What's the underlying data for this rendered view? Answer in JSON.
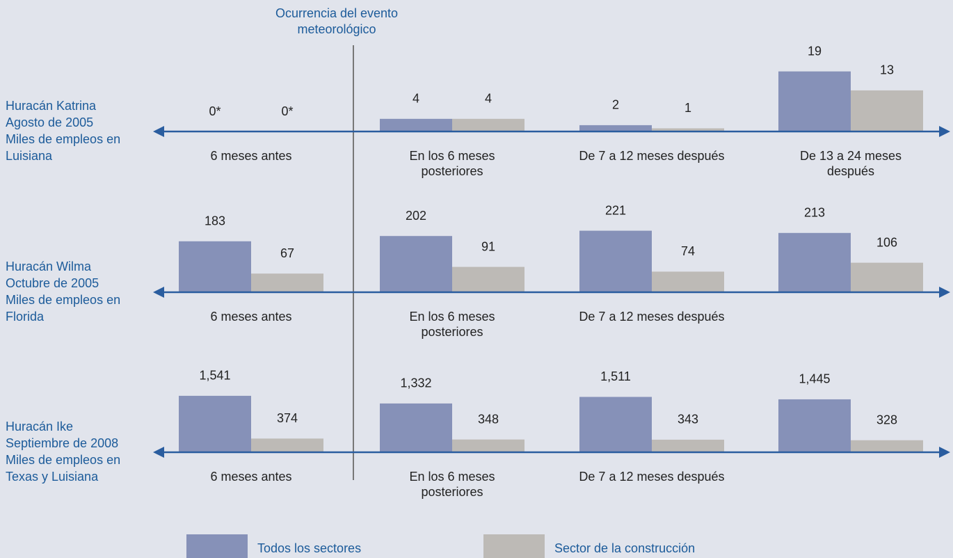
{
  "annotation": [
    "Ocurrencia del evento",
    "meteorológico"
  ],
  "chart_data": [
    {
      "type": "bar",
      "label": [
        "Huracán Katrina",
        "Agosto de 2005",
        "Miles de empleos en",
        "Luisiana"
      ],
      "categories": [
        [
          "6 meses antes"
        ],
        [
          "En los 6 meses",
          "posteriores"
        ],
        [
          "De 7 a 12 meses después"
        ],
        [
          "De 13 a 24 meses",
          "después"
        ]
      ],
      "ylim": [
        0,
        22
      ],
      "series": [
        {
          "name": "Todos los sectores",
          "color": "#8691b8",
          "values": [
            0,
            4,
            2,
            19
          ],
          "value_labels": [
            "0*",
            "4",
            "2",
            "19"
          ]
        },
        {
          "name": "Sector de la construcción",
          "color": "#bdbab6",
          "values": [
            0,
            4,
            1,
            13
          ],
          "value_labels": [
            "0*",
            "4",
            "1",
            "13"
          ]
        }
      ]
    },
    {
      "type": "bar",
      "label": [
        "Huracán Wilma",
        "Octubre de 2005",
        "Miles de empleos en",
        "Florida"
      ],
      "categories": [
        [
          "6 meses antes"
        ],
        [
          "En los 6 meses",
          "posteriores"
        ],
        [
          "De 7 a 12 meses después"
        ],
        null
      ],
      "ylim": [
        0,
        250
      ],
      "series": [
        {
          "name": "Todos los sectores",
          "color": "#8691b8",
          "values": [
            183,
            202,
            221,
            213
          ]
        },
        {
          "name": "Sector de la construcción",
          "color": "#bdbab6",
          "values": [
            67,
            91,
            74,
            106
          ]
        }
      ]
    },
    {
      "type": "bar",
      "label": [
        "Huracán Ike",
        "Septiembre de 2008",
        "Miles de empleos en",
        "Texas y Luisiana"
      ],
      "categories": [
        [
          "6 meses antes"
        ],
        [
          "En los 6 meses",
          "posteriores"
        ],
        [
          "De 7 a 12 meses después"
        ],
        null
      ],
      "ylim": [
        0,
        1900
      ],
      "series": [
        {
          "name": "Todos los sectores",
          "color": "#8691b8",
          "values": [
            1541,
            1332,
            1511,
            1445
          ],
          "value_labels": [
            "1,541",
            "1,332",
            "1,511",
            "1,445"
          ]
        },
        {
          "name": "Sector de la construcción",
          "color": "#bdbab6",
          "values": [
            374,
            348,
            343,
            328
          ]
        }
      ]
    }
  ]
}
